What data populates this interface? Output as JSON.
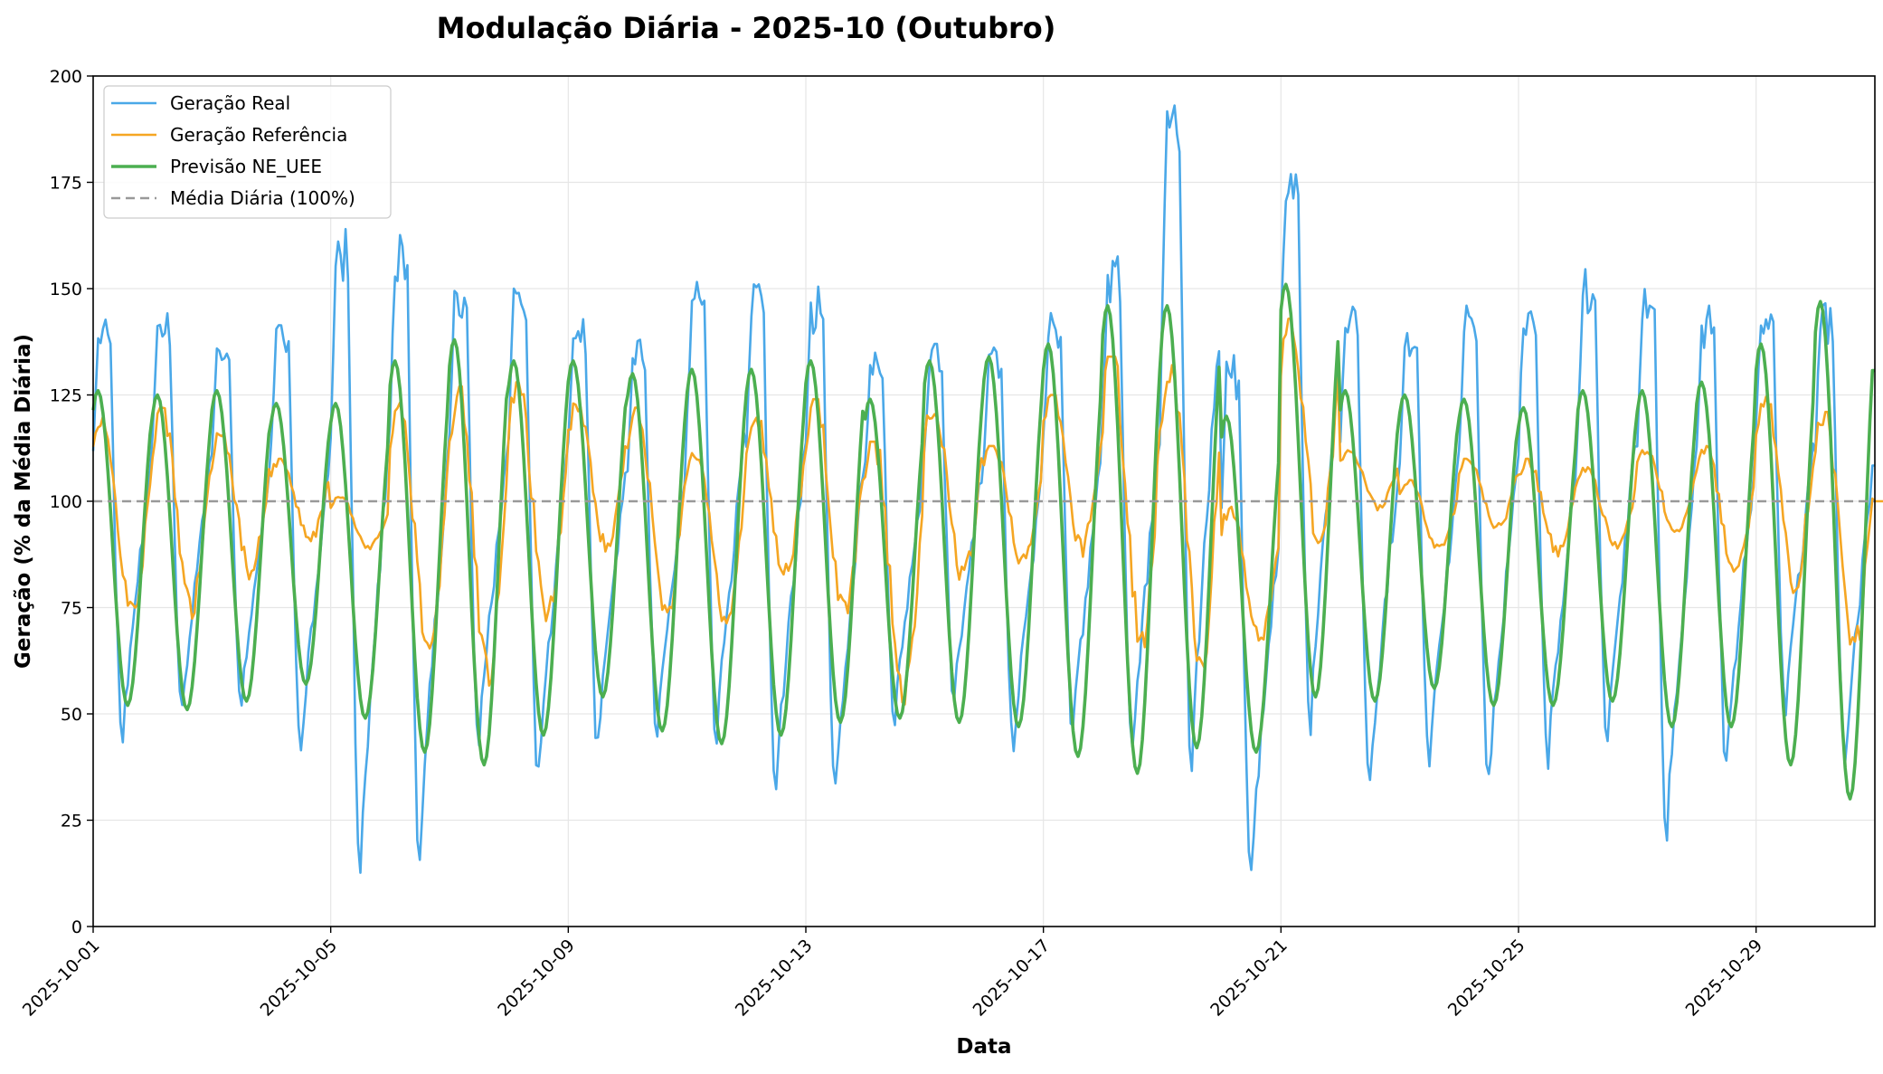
{
  "chart_data": {
    "type": "line",
    "title": "Modulação Diária - 2025-10 (Outubro)",
    "xlabel": "Data",
    "ylabel": "Geração (% da Média Diária)",
    "xlim": [
      "2025-10-01",
      "2025-10-31"
    ],
    "ylim": [
      0,
      200
    ],
    "x_ticks": [
      "2025-10-01",
      "2025-10-05",
      "2025-10-09",
      "2025-10-13",
      "2025-10-17",
      "2025-10-21",
      "2025-10-25",
      "2025-10-29"
    ],
    "y_ticks": [
      0,
      25,
      50,
      75,
      100,
      125,
      150,
      175,
      200
    ],
    "grid": true,
    "legend_position": "top-left",
    "series": [
      {
        "name": "Geração Real",
        "color": "#4aa8e8",
        "daily": [
          {
            "date": "2025-10-01",
            "min": 40,
            "max": 145
          },
          {
            "date": "2025-10-02",
            "min": 46,
            "max": 145
          },
          {
            "date": "2025-10-03",
            "min": 48,
            "max": 139
          },
          {
            "date": "2025-10-04",
            "min": 38,
            "max": 144
          },
          {
            "date": "2025-10-05",
            "min": 10,
            "max": 164
          },
          {
            "date": "2025-10-06",
            "min": 10,
            "max": 163
          },
          {
            "date": "2025-10-07",
            "min": 38,
            "max": 153
          },
          {
            "date": "2025-10-08",
            "min": 30,
            "max": 154
          },
          {
            "date": "2025-10-09",
            "min": 38,
            "max": 144
          },
          {
            "date": "2025-10-10",
            "min": 42,
            "max": 138
          },
          {
            "date": "2025-10-11",
            "min": 40,
            "max": 154
          },
          {
            "date": "2025-10-12",
            "min": 29,
            "max": 151
          },
          {
            "date": "2025-10-13",
            "min": 27,
            "max": 151
          },
          {
            "date": "2025-10-14",
            "min": 45,
            "max": 137
          },
          {
            "date": "2025-10-15",
            "min": 50,
            "max": 137
          },
          {
            "date": "2025-10-16",
            "min": 39,
            "max": 139
          },
          {
            "date": "2025-10-17",
            "min": 41,
            "max": 146
          },
          {
            "date": "2025-10-18",
            "min": 36,
            "max": 158
          },
          {
            "date": "2025-10-19",
            "min": 33,
            "max": 196
          },
          {
            "date": "2025-10-20",
            "min": 9,
            "max": 136
          },
          {
            "date": "2025-10-21",
            "min": 43,
            "max": 180
          },
          {
            "date": "2025-10-22",
            "min": 30,
            "max": 146
          },
          {
            "date": "2025-10-23",
            "min": 34,
            "max": 143
          },
          {
            "date": "2025-10-24",
            "min": 30,
            "max": 146
          },
          {
            "date": "2025-10-25",
            "min": 35,
            "max": 147
          },
          {
            "date": "2025-10-26",
            "min": 37,
            "max": 155
          },
          {
            "date": "2025-10-27",
            "min": 17,
            "max": 152
          },
          {
            "date": "2025-10-28",
            "min": 34,
            "max": 146
          },
          {
            "date": "2025-10-29",
            "min": 46,
            "max": 148
          },
          {
            "date": "2025-10-30",
            "min": 35,
            "max": 147
          }
        ]
      },
      {
        "name": "Geração Referência",
        "color": "#f5a623",
        "daily": [
          {
            "date": "2025-10-01",
            "min": 69,
            "max": 120
          },
          {
            "date": "2025-10-02",
            "min": 70,
            "max": 122
          },
          {
            "date": "2025-10-03",
            "min": 80,
            "max": 116
          },
          {
            "date": "2025-10-04",
            "min": 89,
            "max": 110
          },
          {
            "date": "2025-10-05",
            "min": 88,
            "max": 101
          },
          {
            "date": "2025-10-06",
            "min": 58,
            "max": 125
          },
          {
            "date": "2025-10-07",
            "min": 51,
            "max": 127
          },
          {
            "date": "2025-10-08",
            "min": 66,
            "max": 128
          },
          {
            "date": "2025-10-09",
            "min": 85,
            "max": 123
          },
          {
            "date": "2025-10-10",
            "min": 67,
            "max": 122
          },
          {
            "date": "2025-10-11",
            "min": 68,
            "max": 112
          },
          {
            "date": "2025-10-12",
            "min": 79,
            "max": 120
          },
          {
            "date": "2025-10-13",
            "min": 68,
            "max": 124
          },
          {
            "date": "2025-10-14",
            "min": 48,
            "max": 114
          },
          {
            "date": "2025-10-15",
            "min": 78,
            "max": 122
          },
          {
            "date": "2025-10-16",
            "min": 83,
            "max": 113
          },
          {
            "date": "2025-10-17",
            "min": 85,
            "max": 125
          },
          {
            "date": "2025-10-18",
            "min": 60,
            "max": 134
          },
          {
            "date": "2025-10-19",
            "min": 54,
            "max": 132
          },
          {
            "date": "2025-10-20",
            "min": 64,
            "max": 99
          },
          {
            "date": "2025-10-21",
            "min": 84,
            "max": 143
          },
          {
            "date": "2025-10-22",
            "min": 97,
            "max": 112
          },
          {
            "date": "2025-10-23",
            "min": 87,
            "max": 105
          },
          {
            "date": "2025-10-24",
            "min": 92,
            "max": 110
          },
          {
            "date": "2025-10-25",
            "min": 86,
            "max": 110
          },
          {
            "date": "2025-10-26",
            "min": 87,
            "max": 108
          },
          {
            "date": "2025-10-27",
            "min": 90,
            "max": 112
          },
          {
            "date": "2025-10-28",
            "min": 80,
            "max": 113
          },
          {
            "date": "2025-10-29",
            "min": 76,
            "max": 125
          },
          {
            "date": "2025-10-30",
            "min": 59,
            "max": 121
          },
          {
            "date": "2025-10-31",
            "min": 100,
            "max": 100
          }
        ]
      },
      {
        "name": "Previsão NE_UEE",
        "color": "#4caf50",
        "daily": [
          {
            "date": "2025-10-01",
            "min": 52,
            "max": 126
          },
          {
            "date": "2025-10-02",
            "min": 51,
            "max": 125
          },
          {
            "date": "2025-10-03",
            "min": 53,
            "max": 126
          },
          {
            "date": "2025-10-04",
            "min": 57,
            "max": 123
          },
          {
            "date": "2025-10-05",
            "min": 49,
            "max": 123
          },
          {
            "date": "2025-10-06",
            "min": 41,
            "max": 133
          },
          {
            "date": "2025-10-07",
            "min": 38,
            "max": 138
          },
          {
            "date": "2025-10-08",
            "min": 45,
            "max": 133
          },
          {
            "date": "2025-10-09",
            "min": 54,
            "max": 133
          },
          {
            "date": "2025-10-10",
            "min": 46,
            "max": 130
          },
          {
            "date": "2025-10-11",
            "min": 43,
            "max": 131
          },
          {
            "date": "2025-10-12",
            "min": 45,
            "max": 131
          },
          {
            "date": "2025-10-13",
            "min": 48,
            "max": 133
          },
          {
            "date": "2025-10-14",
            "min": 49,
            "max": 124
          },
          {
            "date": "2025-10-15",
            "min": 48,
            "max": 133
          },
          {
            "date": "2025-10-16",
            "min": 47,
            "max": 134
          },
          {
            "date": "2025-10-17",
            "min": 40,
            "max": 137
          },
          {
            "date": "2025-10-18",
            "min": 36,
            "max": 146
          },
          {
            "date": "2025-10-19",
            "min": 42,
            "max": 146
          },
          {
            "date": "2025-10-20",
            "min": 41,
            "max": 120
          },
          {
            "date": "2025-10-21",
            "min": 54,
            "max": 151
          },
          {
            "date": "2025-10-22",
            "min": 53,
            "max": 126
          },
          {
            "date": "2025-10-23",
            "min": 56,
            "max": 125
          },
          {
            "date": "2025-10-24",
            "min": 52,
            "max": 124
          },
          {
            "date": "2025-10-25",
            "min": 52,
            "max": 122
          },
          {
            "date": "2025-10-26",
            "min": 53,
            "max": 126
          },
          {
            "date": "2025-10-27",
            "min": 47,
            "max": 126
          },
          {
            "date": "2025-10-28",
            "min": 47,
            "max": 128
          },
          {
            "date": "2025-10-29",
            "min": 38,
            "max": 137
          },
          {
            "date": "2025-10-30",
            "min": 30,
            "max": 147
          }
        ]
      },
      {
        "name": "Média Diária (100%)",
        "color": "#999999",
        "style": "dashed",
        "x": [
          "2025-10-01",
          "2025-10-31"
        ],
        "values": [
          100,
          100
        ]
      }
    ]
  }
}
